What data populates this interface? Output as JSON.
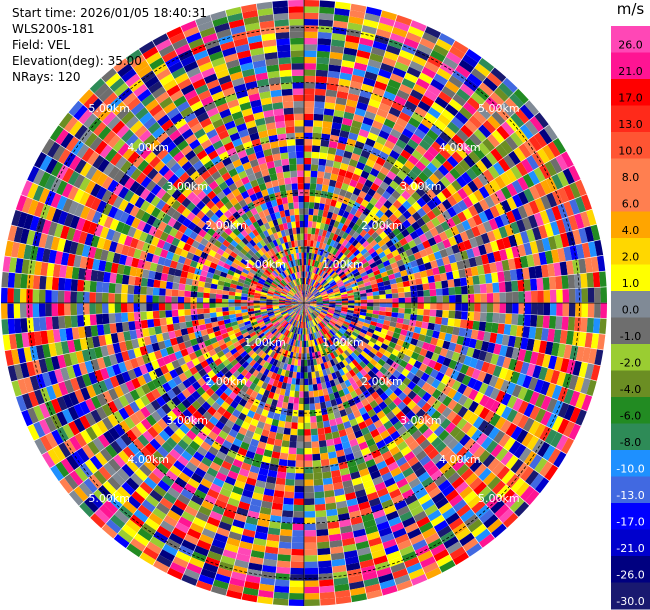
{
  "info": {
    "start_time": "Start time: 2026/01/05 18:40:31",
    "station": "WLS200s-181",
    "field": "Field: VEL",
    "elevation": "Elevation(deg): 35.00",
    "nrays": "NRays: 120"
  },
  "chart_data": {
    "type": "heatmap",
    "projection": "polar-ppi",
    "title": "",
    "n_rays": 120,
    "n_gates": 48,
    "max_range_km": 5.5,
    "range_rings_km": [
      1.0,
      2.0,
      3.0,
      4.0,
      5.0
    ],
    "ring_labels": [
      "1.00km",
      "2.00km",
      "3.00km",
      "4.00km",
      "5.00km"
    ],
    "grid_lines": true,
    "colorbar": {
      "unit": "m/s",
      "placement": "right",
      "tick_labels": [
        "26.0",
        "21.0",
        "17.0",
        "13.0",
        "10.0",
        "8.0",
        "6.0",
        "4.0",
        "2.0",
        "1.0",
        "0.0",
        "-1.0",
        "-2.0",
        "-4.0",
        "-6.0",
        "-8.0",
        "-10.0",
        "-13.0",
        "-17.0",
        "-21.0",
        "-26.0",
        "-30.0"
      ],
      "colors": [
        "#ff47b6",
        "#ff1493",
        "#ff0000",
        "#ff2a1a",
        "#ff5533",
        "#ff7f50",
        "#ff7f50",
        "#ffa500",
        "#ffd700",
        "#ffff00",
        "#808a96",
        "#6e6e6e",
        "#9acd32",
        "#6b8e23",
        "#228b22",
        "#2e8b57",
        "#1e90ff",
        "#4169e1",
        "#0000ff",
        "#0000cd",
        "#000080",
        "#191970"
      ]
    }
  }
}
